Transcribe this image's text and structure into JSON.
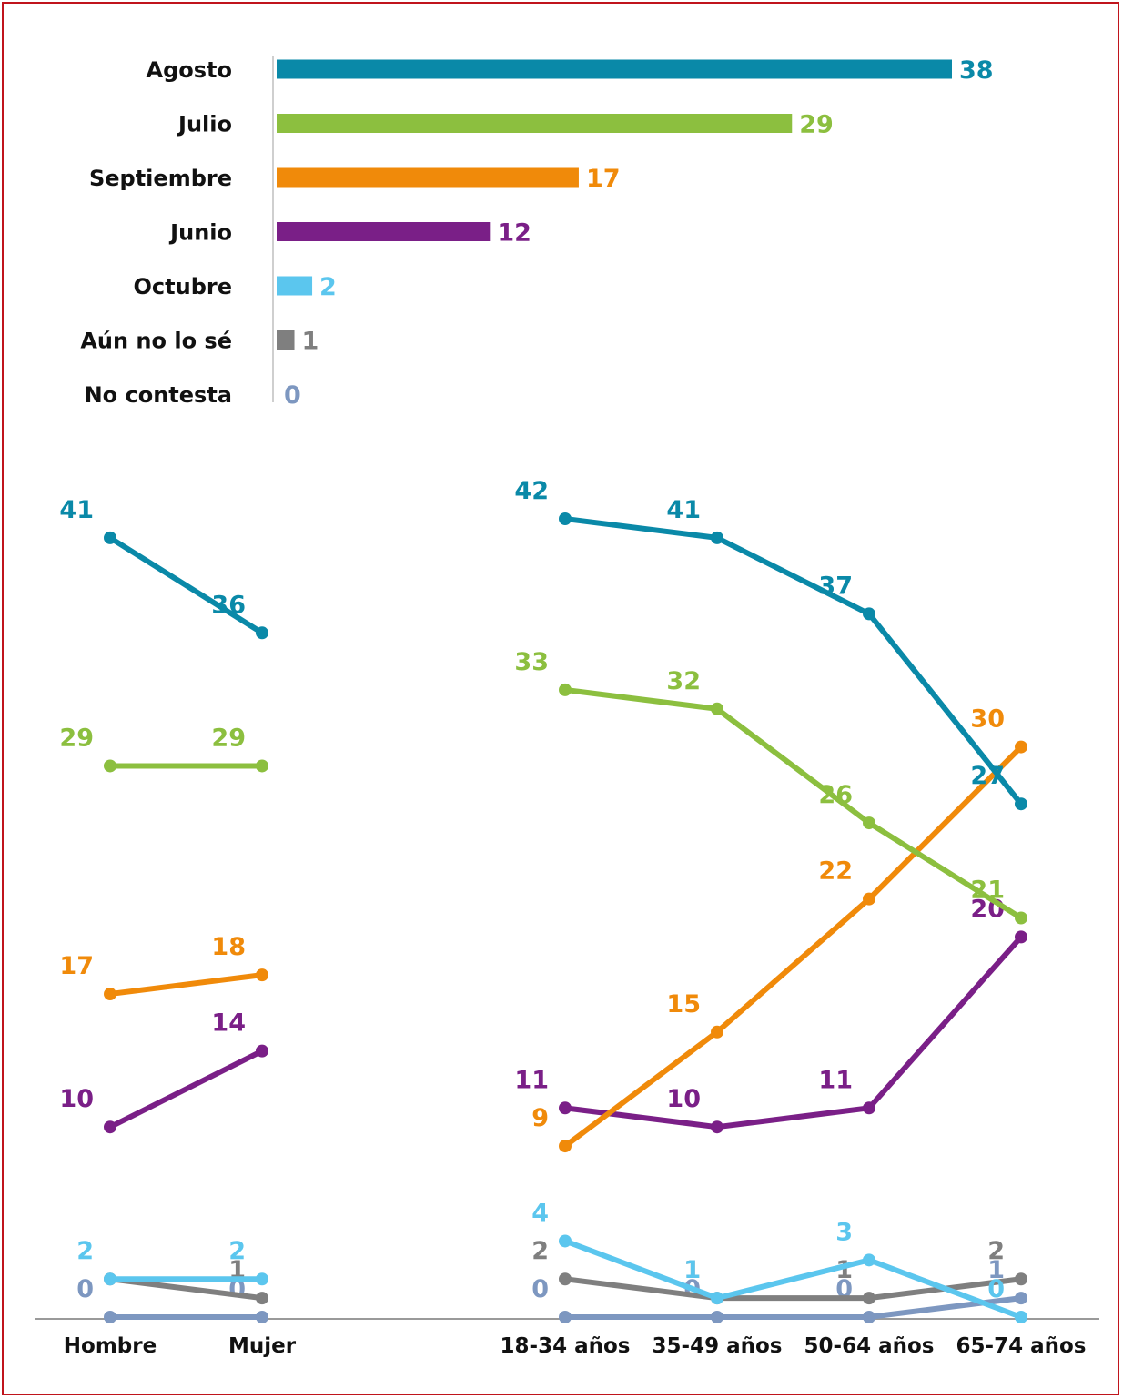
{
  "colors": {
    "Agosto": "#0a89a8",
    "Julio": "#8cbf3f",
    "Septiembre": "#f08a0a",
    "Junio": "#7a1f87",
    "Octubre": "#5bc6ee",
    "Aún no lo sé": "#7f7f7f",
    "No contesta": "#7d97c0"
  },
  "chart_data": [
    {
      "type": "bar",
      "orientation": "horizontal",
      "categories": [
        "Agosto",
        "Julio",
        "Septiembre",
        "Junio",
        "Octubre",
        "Aún no lo sé",
        "No contesta"
      ],
      "values": [
        38,
        29,
        17,
        12,
        2,
        1,
        0
      ],
      "value_labels": [
        "38",
        "29",
        "17",
        "12",
        "2",
        "1",
        "0"
      ],
      "xlim": [
        0,
        38
      ]
    },
    {
      "type": "line",
      "categories": [
        "Hombre",
        "Mujer"
      ],
      "ylim": [
        0,
        42
      ],
      "series": [
        {
          "name": "Agosto",
          "values": [
            41,
            36
          ],
          "labels": [
            "41",
            "36"
          ]
        },
        {
          "name": "Julio",
          "values": [
            29,
            29
          ],
          "labels": [
            "29",
            "29"
          ]
        },
        {
          "name": "Septiembre",
          "values": [
            17,
            18
          ],
          "labels": [
            "17",
            "18"
          ]
        },
        {
          "name": "Junio",
          "values": [
            10,
            14
          ],
          "labels": [
            "10",
            "14"
          ]
        },
        {
          "name": "Octubre",
          "values": [
            2,
            2
          ],
          "labels": [
            "2",
            "2"
          ]
        },
        {
          "name": "Aún no lo sé",
          "values": [
            2,
            1
          ],
          "labels": [
            "",
            "1"
          ]
        },
        {
          "name": "No contesta",
          "values": [
            0,
            0
          ],
          "labels": [
            "0",
            "0"
          ]
        }
      ]
    },
    {
      "type": "line",
      "categories": [
        "18-34 años",
        "35-49 años",
        "50-64 años",
        "65-74 años"
      ],
      "ylim": [
        0,
        42
      ],
      "series": [
        {
          "name": "Agosto",
          "values": [
            42,
            41,
            37,
            27
          ],
          "labels": [
            "42",
            "41",
            "37",
            "27"
          ]
        },
        {
          "name": "Julio",
          "values": [
            33,
            32,
            26,
            21
          ],
          "labels": [
            "33",
            "32",
            "26",
            "21"
          ]
        },
        {
          "name": "Septiembre",
          "values": [
            9,
            15,
            22,
            30
          ],
          "labels": [
            "9",
            "15",
            "22",
            "30"
          ]
        },
        {
          "name": "Junio",
          "values": [
            11,
            10,
            11,
            20
          ],
          "labels": [
            "11",
            "10",
            "11",
            "20"
          ]
        },
        {
          "name": "Octubre",
          "values": [
            4,
            1,
            3,
            0
          ],
          "labels": [
            "4",
            "1",
            "3",
            "0"
          ]
        },
        {
          "name": "Aún no lo sé",
          "values": [
            2,
            1,
            1,
            2
          ],
          "labels": [
            "2",
            "1",
            "1",
            "2"
          ]
        },
        {
          "name": "No contesta",
          "values": [
            0,
            0,
            0,
            1
          ],
          "labels": [
            "0",
            "0",
            "0",
            "1"
          ]
        }
      ]
    }
  ]
}
